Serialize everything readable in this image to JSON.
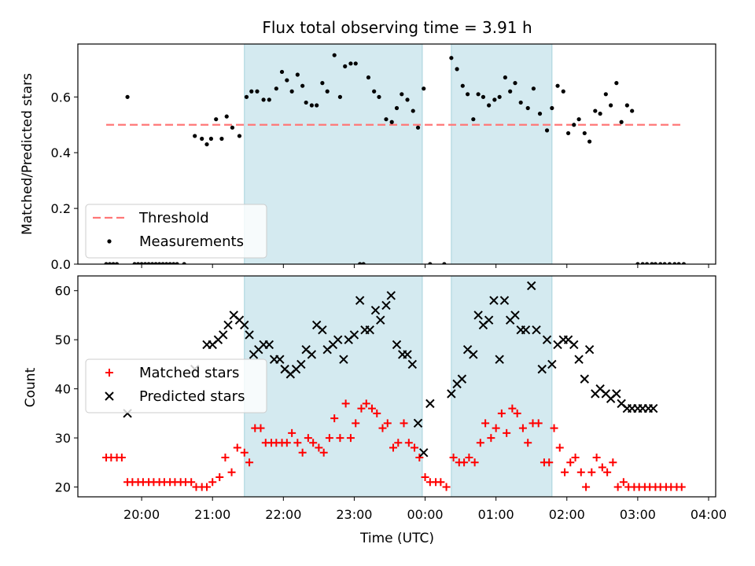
{
  "chart_data": [
    {
      "type": "scatter",
      "title": "Flux total observing time = 3.91 h",
      "ylabel": "Matched/Predicted stars",
      "xlabel": "",
      "xlim": [
        19.1,
        28.1
      ],
      "ylim": [
        0.0,
        0.79
      ],
      "yticks": [
        0.0,
        0.2,
        0.4,
        0.6
      ],
      "ytick_labels": [
        "0.0",
        "0.2",
        "0.4",
        "0.6"
      ],
      "legend": {
        "placement": "lower-left"
      },
      "shaded_spans": [
        [
          21.45,
          23.96
        ],
        [
          24.37,
          25.79
        ]
      ],
      "series": [
        {
          "name": "Threshold",
          "style": "dashed-line",
          "color": "#ff7777",
          "x": [
            19.5,
            27.65
          ],
          "y": [
            0.5,
            0.5
          ]
        },
        {
          "name": "Measurements",
          "style": "dot",
          "color": "#000000",
          "x": [
            19.5,
            19.55,
            19.6,
            19.65,
            19.8,
            19.9,
            19.95,
            20.0,
            20.05,
            20.1,
            20.15,
            20.2,
            20.25,
            20.3,
            20.35,
            20.4,
            20.45,
            20.5,
            20.6,
            20.75,
            20.85,
            20.92,
            20.98,
            21.05,
            21.13,
            21.2,
            21.28,
            21.38,
            21.48,
            21.55,
            21.63,
            21.72,
            21.8,
            21.9,
            21.98,
            22.05,
            22.12,
            22.2,
            22.27,
            22.32,
            22.4,
            22.47,
            22.55,
            22.62,
            22.72,
            22.8,
            22.87,
            22.95,
            23.02,
            23.08,
            23.13,
            23.2,
            23.28,
            23.35,
            23.45,
            23.53,
            23.6,
            23.67,
            23.75,
            23.83,
            23.9,
            23.98,
            24.07,
            24.27,
            24.37,
            24.45,
            24.53,
            24.6,
            24.68,
            24.75,
            24.82,
            24.9,
            24.98,
            25.05,
            25.13,
            25.2,
            25.27,
            25.35,
            25.45,
            25.53,
            25.62,
            25.72,
            25.79,
            25.87,
            25.95,
            26.02,
            26.1,
            26.17,
            26.25,
            26.32,
            26.4,
            26.47,
            26.55,
            26.62,
            26.7,
            26.77,
            26.85,
            26.92,
            27.0,
            27.07,
            27.13,
            27.2,
            27.25,
            27.32,
            27.38,
            27.45,
            27.52,
            27.58,
            27.65
          ],
          "y": [
            0.0,
            0.0,
            0.0,
            0.0,
            0.6,
            0.0,
            0.0,
            0.0,
            0.0,
            0.0,
            0.0,
            0.0,
            0.0,
            0.0,
            0.0,
            0.0,
            0.0,
            0.0,
            0.0,
            0.46,
            0.45,
            0.43,
            0.45,
            0.52,
            0.45,
            0.53,
            0.49,
            0.46,
            0.6,
            0.62,
            0.62,
            0.59,
            0.59,
            0.63,
            0.69,
            0.66,
            0.62,
            0.68,
            0.64,
            0.58,
            0.57,
            0.57,
            0.65,
            0.62,
            0.75,
            0.6,
            0.71,
            0.72,
            0.72,
            0.0,
            0.0,
            0.67,
            0.62,
            0.6,
            0.52,
            0.51,
            0.56,
            0.61,
            0.59,
            0.55,
            0.49,
            0.63,
            0.0,
            0.0,
            0.74,
            0.7,
            0.64,
            0.61,
            0.52,
            0.61,
            0.6,
            0.57,
            0.59,
            0.6,
            0.67,
            0.62,
            0.65,
            0.58,
            0.56,
            0.63,
            0.54,
            0.48,
            0.56,
            0.64,
            0.62,
            0.47,
            0.5,
            0.52,
            0.47,
            0.44,
            0.55,
            0.54,
            0.61,
            0.57,
            0.65,
            0.51,
            0.57,
            0.55,
            0.0,
            0.0,
            0.0,
            0.0,
            0.0,
            0.0,
            0.0,
            0.0,
            0.0,
            0.0,
            0.0
          ]
        }
      ]
    },
    {
      "type": "scatter",
      "title": "",
      "ylabel": "Count",
      "xlabel": "Time (UTC)",
      "xlim": [
        19.1,
        28.1
      ],
      "ylim": [
        18.0,
        63.0
      ],
      "yticks": [
        20,
        30,
        40,
        50,
        60
      ],
      "ytick_labels": [
        "20",
        "30",
        "40",
        "50",
        "60"
      ],
      "xticks": [
        20,
        21,
        22,
        23,
        24,
        25,
        26,
        27,
        28
      ],
      "xtick_labels": [
        "20:00",
        "21:00",
        "22:00",
        "23:00",
        "00:00",
        "01:00",
        "02:00",
        "03:00",
        "04:00"
      ],
      "legend": {
        "placement": "center-left"
      },
      "shaded_spans": [
        [
          21.45,
          23.96
        ],
        [
          24.37,
          25.79
        ]
      ],
      "series": [
        {
          "name": "Matched stars",
          "style": "plus",
          "color": "#ff0000",
          "x": [
            19.5,
            19.57,
            19.65,
            19.72,
            19.8,
            19.87,
            19.95,
            20.02,
            20.1,
            20.17,
            20.25,
            20.32,
            20.4,
            20.47,
            20.55,
            20.62,
            20.7,
            20.77,
            20.85,
            20.92,
            21.0,
            21.1,
            21.18,
            21.27,
            21.35,
            21.45,
            21.52,
            21.6,
            21.68,
            21.75,
            21.83,
            21.9,
            21.98,
            22.05,
            22.12,
            22.2,
            22.27,
            22.35,
            22.42,
            22.5,
            22.57,
            22.65,
            22.72,
            22.8,
            22.88,
            22.95,
            23.02,
            23.1,
            23.17,
            23.25,
            23.32,
            23.4,
            23.47,
            23.55,
            23.62,
            23.7,
            23.77,
            23.85,
            23.92,
            24.0,
            24.07,
            24.15,
            24.22,
            24.3,
            24.4,
            24.48,
            24.55,
            24.62,
            24.7,
            24.78,
            24.85,
            24.93,
            25.0,
            25.08,
            25.15,
            25.23,
            25.3,
            25.38,
            25.45,
            25.52,
            25.6,
            25.68,
            25.75,
            25.82,
            25.9,
            25.97,
            26.05,
            26.12,
            26.2,
            26.27,
            26.35,
            26.42,
            26.5,
            26.57,
            26.65,
            26.72,
            26.8,
            26.87,
            26.95,
            27.02,
            27.1,
            27.17,
            27.25,
            27.32,
            27.4,
            27.47,
            27.55,
            27.62
          ],
          "y": [
            26,
            26,
            26,
            26,
            21,
            21,
            21,
            21,
            21,
            21,
            21,
            21,
            21,
            21,
            21,
            21,
            21,
            20,
            20,
            20,
            21,
            22,
            26,
            23,
            28,
            27,
            25,
            32,
            32,
            29,
            29,
            29,
            29,
            29,
            31,
            29,
            27,
            30,
            29,
            28,
            27,
            30,
            34,
            30,
            37,
            30,
            33,
            36,
            37,
            36,
            35,
            32,
            33,
            28,
            29,
            33,
            29,
            28,
            26,
            22,
            21,
            21,
            21,
            20,
            26,
            25,
            25,
            26,
            25,
            29,
            33,
            30,
            32,
            35,
            31,
            36,
            35,
            32,
            29,
            33,
            33,
            25,
            25,
            32,
            28,
            23,
            25,
            26,
            23,
            20,
            23,
            26,
            24,
            23,
            25,
            20,
            21,
            20,
            20,
            20,
            20,
            20,
            20,
            20,
            20,
            20,
            20,
            20
          ]
        },
        {
          "name": "Predicted stars",
          "style": "cross",
          "color": "#000000",
          "x": [
            19.8,
            20.75,
            20.92,
            21.0,
            21.08,
            21.15,
            21.22,
            21.3,
            21.38,
            21.45,
            21.52,
            21.58,
            21.65,
            21.72,
            21.8,
            21.87,
            21.95,
            22.02,
            22.1,
            22.18,
            22.25,
            22.32,
            22.4,
            22.47,
            22.55,
            22.62,
            22.7,
            22.77,
            22.85,
            22.92,
            23.0,
            23.08,
            23.15,
            23.22,
            23.3,
            23.37,
            23.45,
            23.52,
            23.6,
            23.68,
            23.75,
            23.82,
            23.9,
            23.98,
            24.07,
            24.37,
            24.45,
            24.52,
            24.6,
            24.68,
            24.75,
            24.82,
            24.9,
            24.97,
            25.05,
            25.12,
            25.2,
            25.27,
            25.35,
            25.42,
            25.5,
            25.57,
            25.65,
            25.72,
            25.79,
            25.87,
            25.95,
            26.02,
            26.1,
            26.17,
            26.25,
            26.32,
            26.4,
            26.47,
            26.55,
            26.62,
            26.7,
            26.77,
            26.85,
            26.92,
            27.0,
            27.07,
            27.15,
            27.22
          ],
          "y": [
            35,
            44,
            49,
            49,
            50,
            51,
            53,
            55,
            54,
            53,
            51,
            47,
            48,
            49,
            49,
            46,
            46,
            44,
            43,
            44,
            45,
            48,
            47,
            53,
            52,
            48,
            49,
            50,
            46,
            50,
            51,
            58,
            52,
            52,
            56,
            54,
            57,
            59,
            49,
            47,
            47,
            45,
            33,
            27,
            37,
            39,
            41,
            42,
            48,
            47,
            55,
            53,
            54,
            58,
            46,
            58,
            54,
            55,
            52,
            52,
            61,
            52,
            44,
            50,
            45,
            49,
            50,
            50,
            49,
            46,
            42,
            48,
            39,
            40,
            39,
            38,
            39,
            37,
            36,
            36,
            36,
            36,
            36,
            36
          ]
        }
      ]
    }
  ]
}
